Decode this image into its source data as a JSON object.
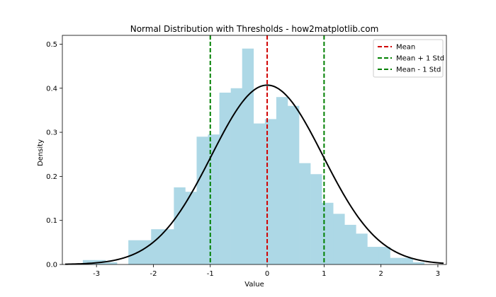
{
  "chart_data": {
    "type": "bar",
    "title": "Normal Distribution with Thresholds - how2matplotlib.com",
    "xlabel": "Value",
    "ylabel": "Density",
    "xlim": [
      -3.6,
      3.15
    ],
    "ylim": [
      0,
      0.52
    ],
    "x_ticks": [
      -3,
      -2,
      -1,
      0,
      1,
      2,
      3
    ],
    "y_ticks": [
      0.0,
      0.1,
      0.2,
      0.3,
      0.4,
      0.5
    ],
    "x_tick_labels": [
      "-3",
      "-2",
      "-1",
      "0",
      "1",
      "2",
      "3"
    ],
    "y_tick_labels": [
      "0.0",
      "0.1",
      "0.2",
      "0.3",
      "0.4",
      "0.5"
    ],
    "histogram": {
      "color": "#add8e6",
      "bin_edges": [
        -3.24,
        -3.04,
        -2.84,
        -2.64,
        -2.44,
        -2.24,
        -2.04,
        -1.84,
        -1.64,
        -1.44,
        -1.24,
        -1.04,
        -0.84,
        -0.64,
        -0.44,
        -0.24,
        -0.04,
        0.16,
        0.36,
        0.56,
        0.76,
        0.96,
        1.16,
        1.36,
        1.56,
        1.76,
        1.96,
        2.16,
        2.36,
        2.56,
        2.76
      ],
      "densities": [
        0.01,
        0.01,
        0.005,
        0.0,
        0.055,
        0.055,
        0.08,
        0.08,
        0.175,
        0.165,
        0.29,
        0.295,
        0.39,
        0.4,
        0.49,
        0.32,
        0.33,
        0.38,
        0.36,
        0.23,
        0.205,
        0.14,
        0.115,
        0.09,
        0.07,
        0.04,
        0.04,
        0.015,
        0.015,
        0.005
      ]
    },
    "pdf_curve": {
      "color": "#000000",
      "mean": 0,
      "std": 0.98,
      "x_range": [
        -3.55,
        3.1
      ]
    },
    "threshold_lines": [
      {
        "label": "Mean",
        "x": 0,
        "color": "#d00000"
      },
      {
        "label": "Mean + 1 Std",
        "x": 1,
        "color": "#008000"
      },
      {
        "label": "Mean - 1 Std",
        "x": -1,
        "color": "#008000"
      }
    ],
    "legend_position": "top-right",
    "grid": false
  }
}
